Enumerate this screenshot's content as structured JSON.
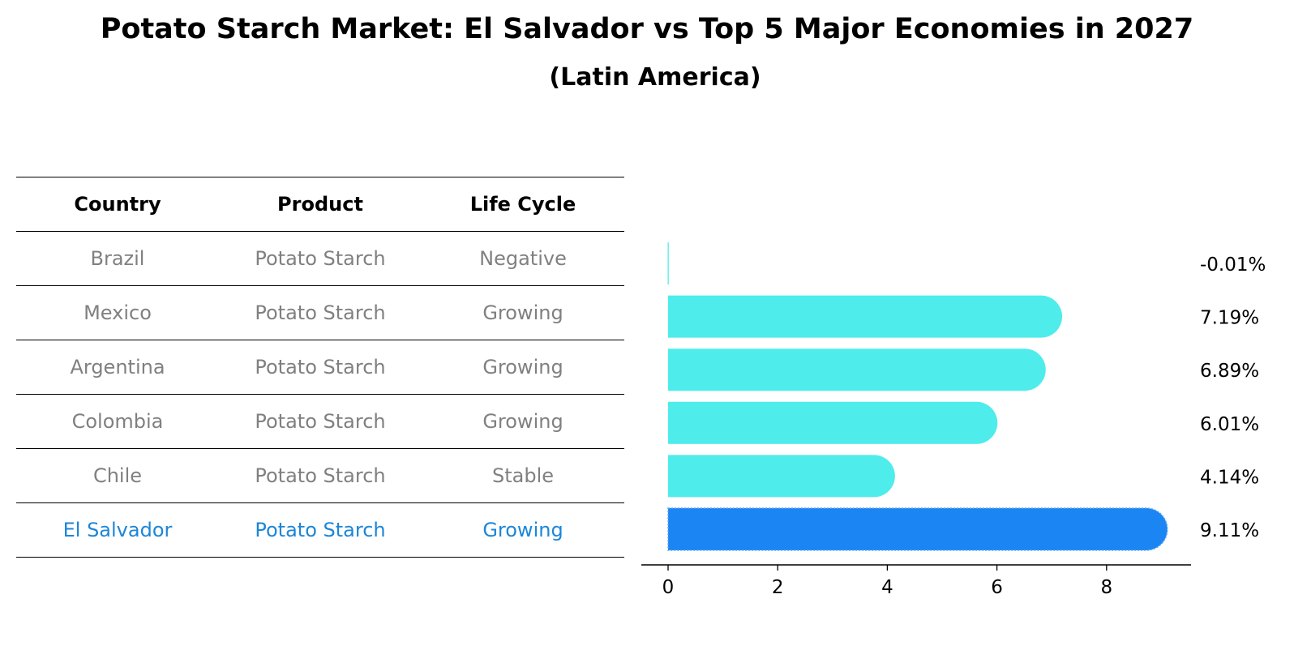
{
  "title": "Potato Starch Market: El Salvador vs Top 5 Major Economies in 2027",
  "subtitle": "(Latin America)",
  "table": {
    "headers": [
      "Country",
      "Product",
      "Life Cycle"
    ],
    "rows": [
      {
        "country": "Brazil",
        "product": "Potato Starch",
        "life_cycle": "Negative"
      },
      {
        "country": "Mexico",
        "product": "Potato Starch",
        "life_cycle": "Growing"
      },
      {
        "country": "Argentina",
        "product": "Potato Starch",
        "life_cycle": "Growing"
      },
      {
        "country": "Colombia",
        "product": "Potato Starch",
        "life_cycle": "Growing"
      },
      {
        "country": "Chile",
        "product": "Potato Starch",
        "life_cycle": "Stable"
      },
      {
        "country": "El Salvador",
        "product": "Potato Starch",
        "life_cycle": "Growing"
      }
    ]
  },
  "colors": {
    "bar": "#4eeceb",
    "highlight_bar": "#1a85f3",
    "highlight_text": "#1c86d8",
    "muted_text": "#808080"
  },
  "chart_data": {
    "type": "bar",
    "orientation": "horizontal",
    "categories": [
      "Brazil",
      "Mexico",
      "Argentina",
      "Colombia",
      "Chile",
      "El Salvador"
    ],
    "values": [
      -0.01,
      7.19,
      6.89,
      6.01,
      4.14,
      9.11
    ],
    "value_labels": [
      "-0.01%",
      "7.19%",
      "6.89%",
      "6.01%",
      "4.14%",
      "9.11%"
    ],
    "highlight": "El Salvador",
    "xticks": [
      "0",
      "2",
      "4",
      "6",
      "8"
    ],
    "xlim": [
      -0.5,
      9.5
    ],
    "grid": false
  }
}
